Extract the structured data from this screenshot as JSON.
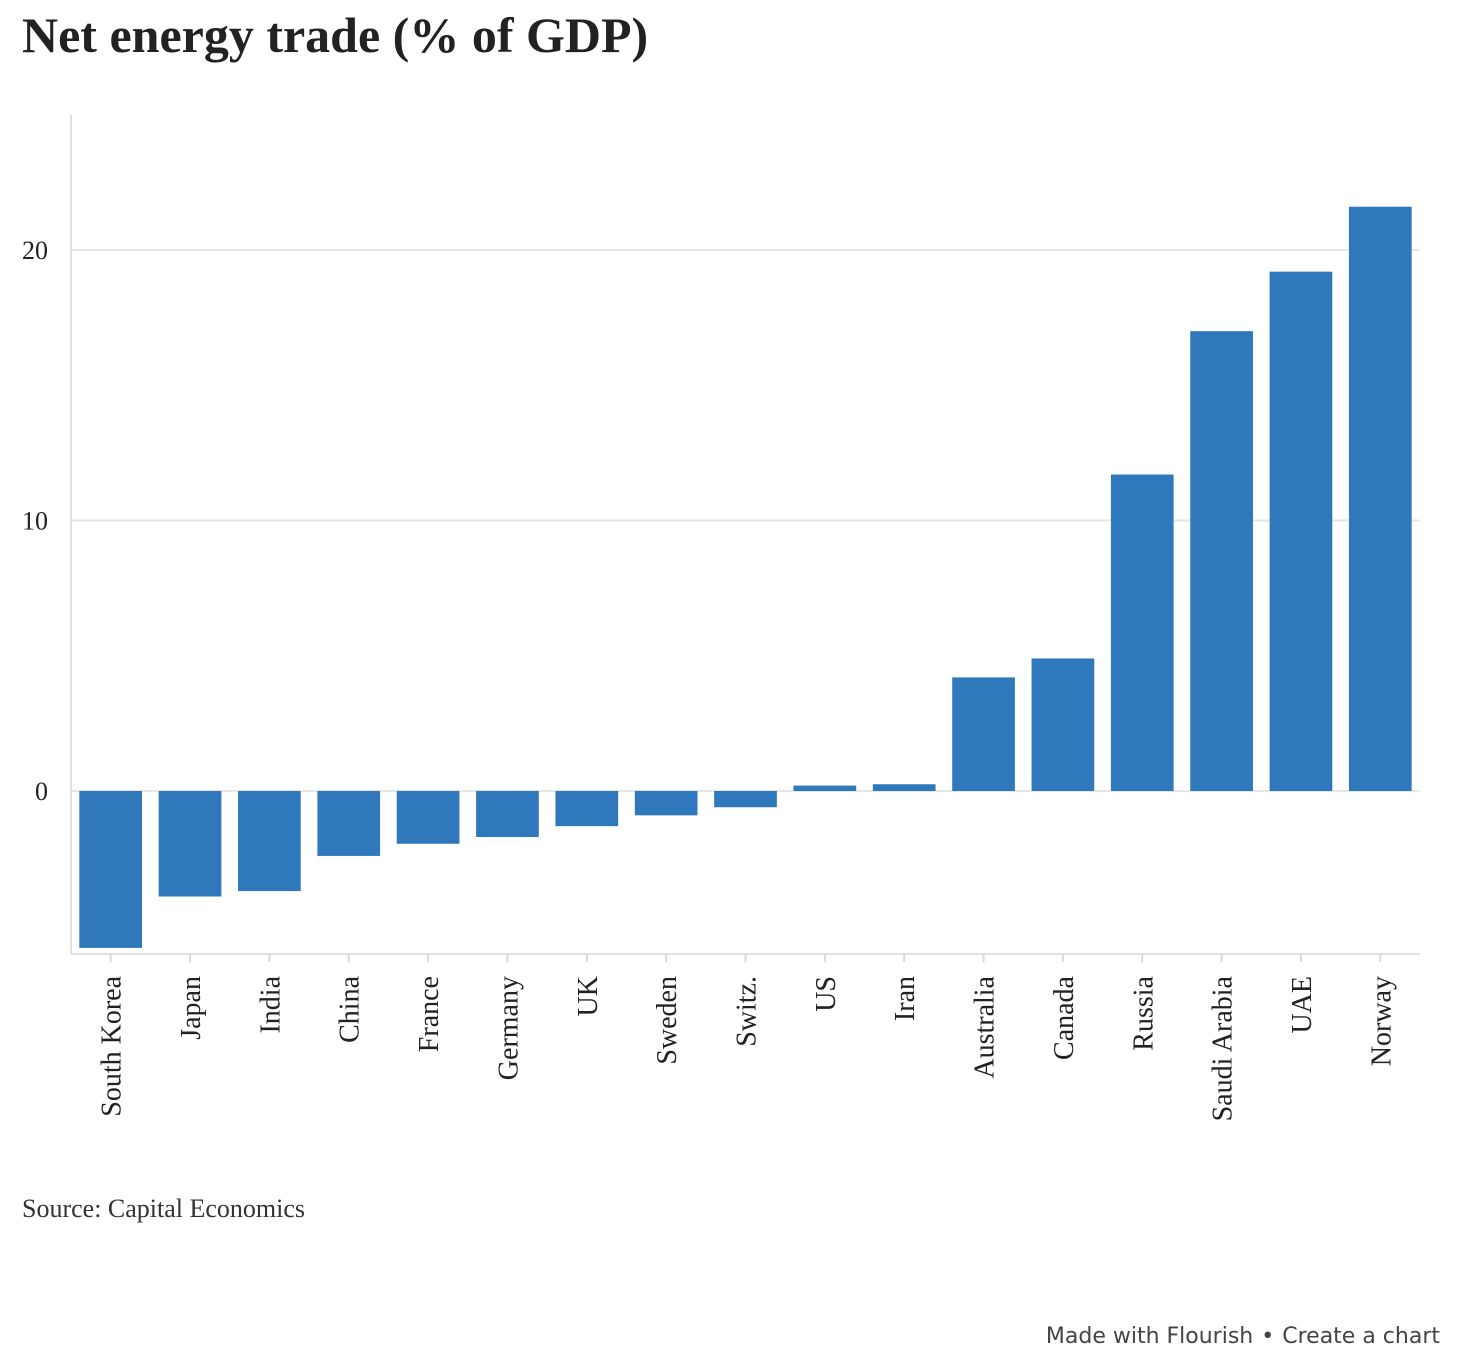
{
  "chart_data": {
    "type": "bar",
    "title": "Net energy trade (% of GDP)",
    "categories": [
      "South Korea",
      "Japan",
      "India",
      "China",
      "France",
      "Germany",
      "UK",
      "Sweden",
      "Switz.",
      "US",
      "Iran",
      "Australia",
      "Canada",
      "Russia",
      "Saudi Arabia",
      "UAE",
      "Norway"
    ],
    "values": [
      -5.8,
      -3.9,
      -3.7,
      -2.4,
      -1.95,
      -1.7,
      -1.3,
      -0.9,
      -0.6,
      0.2,
      0.25,
      4.2,
      4.9,
      11.7,
      17.0,
      19.2,
      21.6
    ],
    "yticks": [
      0,
      10,
      20
    ],
    "ylim": [
      -6,
      25
    ],
    "xlabel": "",
    "ylabel": "",
    "grid": true,
    "bar_color": "#2f78bb"
  },
  "source": "Source: Capital Economics",
  "footer": {
    "made_with": "Made with Flourish",
    "separator": "•",
    "create": "Create a chart"
  }
}
